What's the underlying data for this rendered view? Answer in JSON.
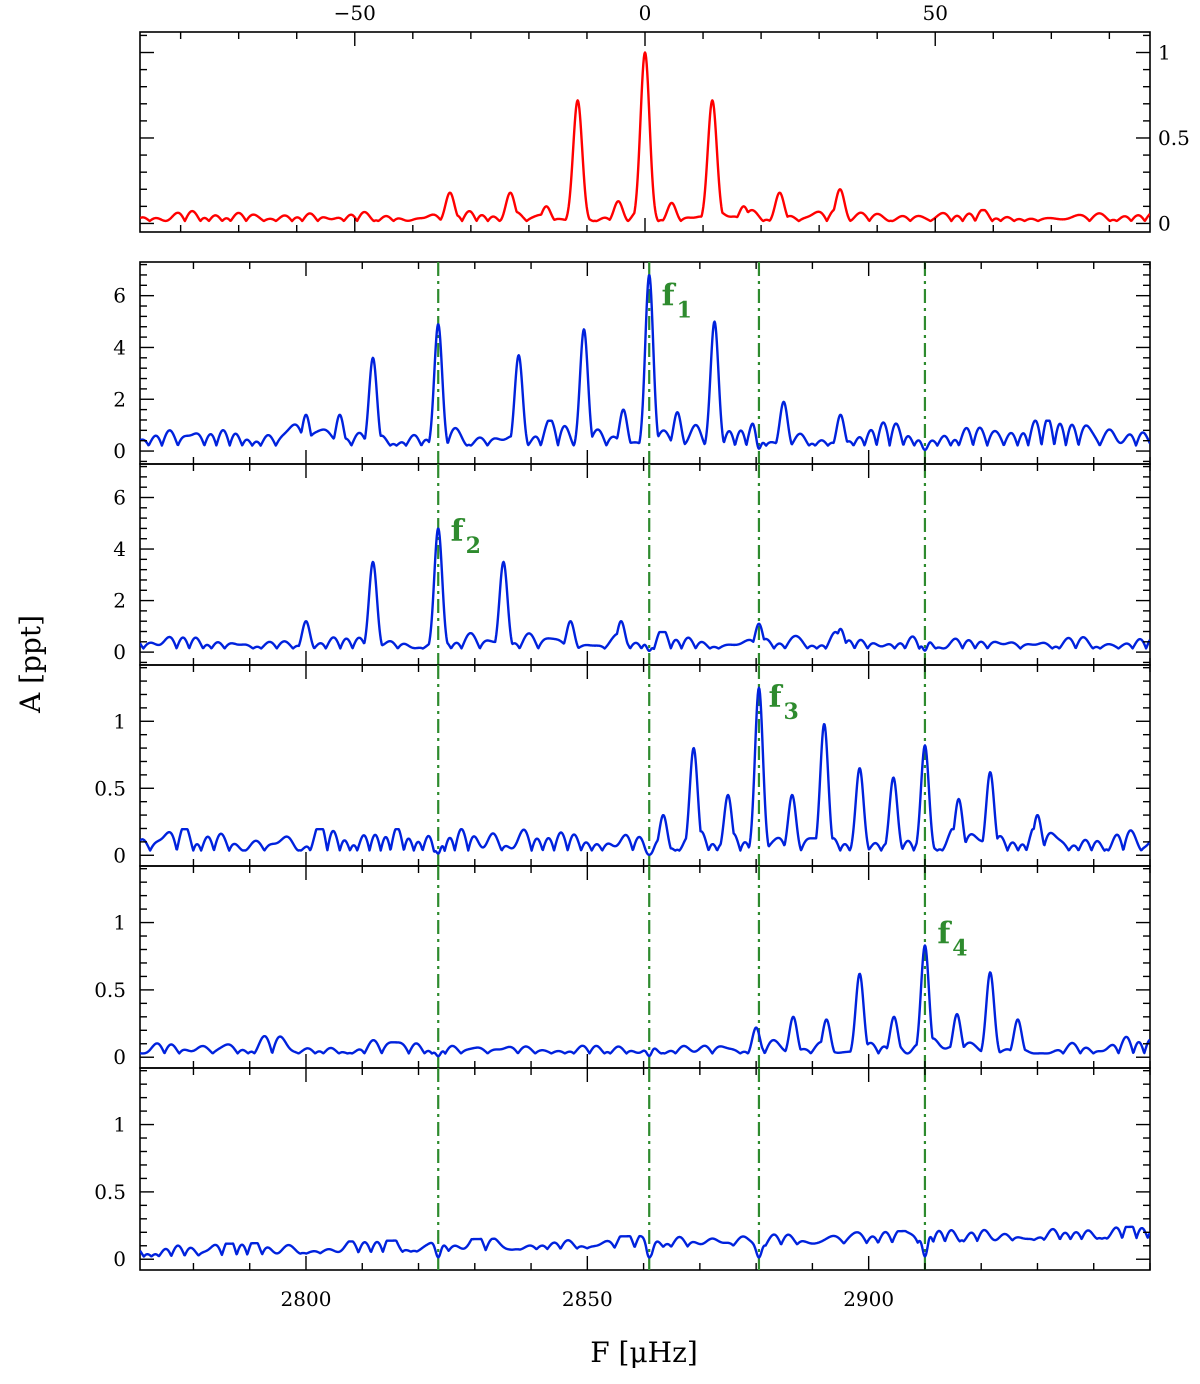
{
  "chart_data": [
    {
      "type": "line",
      "panel": "spectral-window",
      "x_axis_top": {
        "range": [
          -87,
          87
        ],
        "ticks": [
          -50,
          0,
          50
        ],
        "tick_labels": [
          "−50",
          "0",
          "50"
        ]
      },
      "y_axis_right": {
        "range": [
          -0.05,
          1.12
        ],
        "ticks": [
          0,
          0.5,
          1
        ],
        "tick_labels": [
          "0",
          "0.5",
          "1"
        ]
      },
      "line_color": "#ff0000",
      "noise_level": 0.04,
      "peaks": [
        {
          "x": 0,
          "y": 1.0
        },
        {
          "x": -11.6,
          "y": 0.72
        },
        {
          "x": 11.6,
          "y": 0.72
        },
        {
          "x": -23.2,
          "y": 0.18
        },
        {
          "x": 23.2,
          "y": 0.18
        },
        {
          "x": -33.6,
          "y": 0.18
        },
        {
          "x": 33.6,
          "y": 0.2
        },
        {
          "x": -4.6,
          "y": 0.13
        },
        {
          "x": 4.6,
          "y": 0.12
        },
        {
          "x": -17,
          "y": 0.1
        },
        {
          "x": 17,
          "y": 0.1
        }
      ]
    },
    {
      "type": "line",
      "panel": "amplitude-1",
      "y_axis": {
        "range": [
          -0.5,
          7.3
        ],
        "ticks": [
          0,
          2,
          4,
          6
        ],
        "tick_labels": [
          "0",
          "2",
          "4",
          "6"
        ]
      },
      "line_color": "#0022dd",
      "noise_level": 0.6,
      "peaks": [
        {
          "x": 2861,
          "y": 6.8
        },
        {
          "x": 2823.5,
          "y": 4.9
        },
        {
          "x": 2849.4,
          "y": 4.7
        },
        {
          "x": 2872.6,
          "y": 5.0
        },
        {
          "x": 2811.9,
          "y": 3.6
        },
        {
          "x": 2837.8,
          "y": 3.7
        },
        {
          "x": 2884.9,
          "y": 1.9
        },
        {
          "x": 2800,
          "y": 1.4
        },
        {
          "x": 2856.4,
          "y": 1.6
        },
        {
          "x": 2806,
          "y": 1.4
        },
        {
          "x": 2895,
          "y": 1.4
        },
        {
          "x": 2866,
          "y": 1.5
        }
      ],
      "annotation": {
        "label": "f",
        "subscript": "1",
        "x": 2862.5,
        "y": 6.0
      }
    },
    {
      "type": "line",
      "panel": "amplitude-2",
      "y_axis": {
        "range": [
          -0.5,
          7.3
        ],
        "ticks": [
          0,
          2,
          4,
          6
        ],
        "tick_labels": [
          "0",
          "2",
          "4",
          "6"
        ]
      },
      "line_color": "#0022dd",
      "noise_level": 0.4,
      "peaks": [
        {
          "x": 2823.5,
          "y": 4.8
        },
        {
          "x": 2811.9,
          "y": 3.5
        },
        {
          "x": 2835.1,
          "y": 3.5
        },
        {
          "x": 2800,
          "y": 1.2
        },
        {
          "x": 2847,
          "y": 1.2
        },
        {
          "x": 2856,
          "y": 1.2
        },
        {
          "x": 2880.5,
          "y": 1.1
        },
        {
          "x": 2895,
          "y": 0.9
        }
      ],
      "annotation": {
        "label": "f",
        "subscript": "2",
        "x": 2825,
        "y": 4.7
      }
    },
    {
      "type": "line",
      "panel": "amplitude-3",
      "y_axis": {
        "range": [
          -0.08,
          1.42
        ],
        "ticks": [
          0,
          0.5,
          1
        ],
        "tick_labels": [
          "0",
          "0.5",
          "1"
        ]
      },
      "line_color": "#0022dd",
      "noise_level": 0.1,
      "peaks": [
        {
          "x": 2880.5,
          "y": 1.25
        },
        {
          "x": 2892.1,
          "y": 0.98
        },
        {
          "x": 2868.9,
          "y": 0.8
        },
        {
          "x": 2910,
          "y": 0.82
        },
        {
          "x": 2921.6,
          "y": 0.62
        },
        {
          "x": 2898.4,
          "y": 0.65
        },
        {
          "x": 2904.4,
          "y": 0.58
        },
        {
          "x": 2886.4,
          "y": 0.45
        },
        {
          "x": 2875,
          "y": 0.45
        },
        {
          "x": 2916,
          "y": 0.42
        },
        {
          "x": 2863.5,
          "y": 0.3
        },
        {
          "x": 2930,
          "y": 0.3
        }
      ],
      "annotation": {
        "label": "f",
        "subscript": "3",
        "x": 2881.5,
        "y": 1.18
      }
    },
    {
      "type": "line",
      "panel": "amplitude-4",
      "y_axis": {
        "range": [
          -0.08,
          1.42
        ],
        "ticks": [
          0,
          0.5,
          1
        ],
        "tick_labels": [
          "0",
          "0.5",
          "1"
        ]
      },
      "line_color": "#0022dd",
      "noise_level": 0.08,
      "peaks": [
        {
          "x": 2910,
          "y": 0.83
        },
        {
          "x": 2898.4,
          "y": 0.62
        },
        {
          "x": 2921.6,
          "y": 0.63
        },
        {
          "x": 2904.5,
          "y": 0.3
        },
        {
          "x": 2915.7,
          "y": 0.32
        },
        {
          "x": 2886.6,
          "y": 0.3
        },
        {
          "x": 2892.5,
          "y": 0.28
        },
        {
          "x": 2926.5,
          "y": 0.28
        },
        {
          "x": 2880,
          "y": 0.22
        }
      ],
      "annotation": {
        "label": "f",
        "subscript": "4",
        "x": 2911.5,
        "y": 0.92
      }
    },
    {
      "type": "line",
      "panel": "amplitude-5",
      "y_axis": {
        "range": [
          -0.08,
          1.42
        ],
        "ticks": [
          0,
          0.5,
          1
        ],
        "tick_labels": [
          "0",
          "0.5",
          "1"
        ]
      },
      "line_color": "#0022dd",
      "noise_level": 0.07,
      "baseline_trend": [
        0.04,
        0.18
      ],
      "peaks": []
    }
  ],
  "x_axis": {
    "range": [
      2770.5,
      2950
    ],
    "ticks": [
      2800,
      2850,
      2900
    ],
    "tick_labels": [
      "2800",
      "2850",
      "2900"
    ],
    "label": "F [μHz]"
  },
  "y_axis_label": "A [ppt]",
  "vlines": {
    "x": [
      2823.5,
      2861,
      2880.5,
      2910
    ],
    "color": "#2e8b2e",
    "style": "dash-dot"
  },
  "colors": {
    "window": "#ff0000",
    "spectra": "#0022dd",
    "markers": "#2e8b2e",
    "frame": "#000000"
  }
}
